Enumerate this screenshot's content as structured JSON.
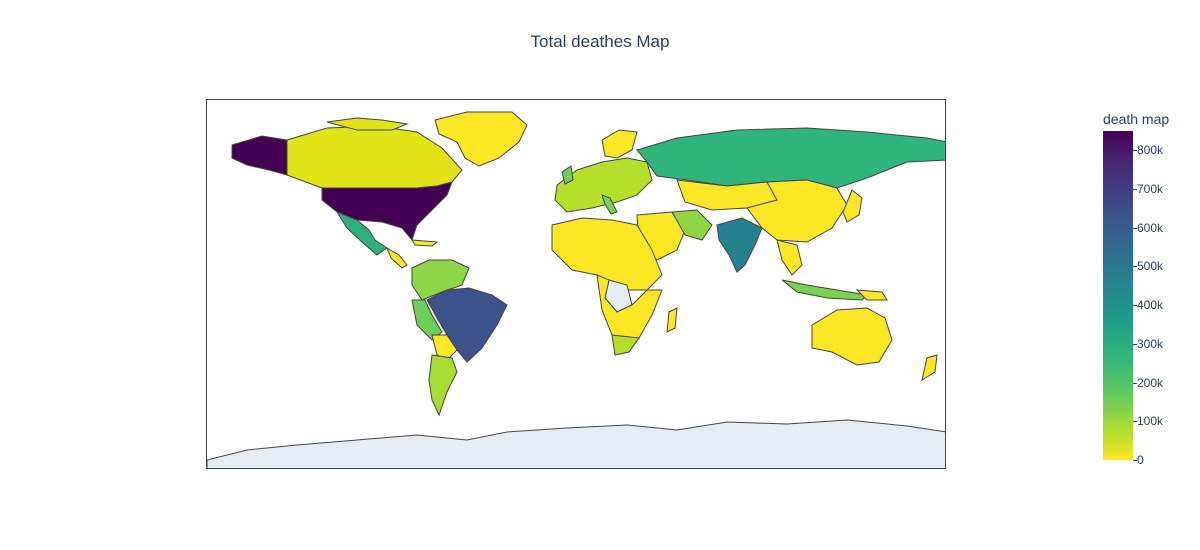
{
  "chart_data": {
    "type": "choropleth",
    "title": "Total deathes Map",
    "colorbar": {
      "title": "death map",
      "ticks": [
        "0",
        "100k",
        "200k",
        "300k",
        "400k",
        "500k",
        "600k",
        "700k",
        "800k"
      ],
      "range": [
        0,
        850000
      ]
    },
    "colors": {
      "missing": "#e5ecf6",
      "border": "#444444"
    },
    "regions": [
      {
        "name": "United States",
        "value": 850000
      },
      {
        "name": "Alaska",
        "value": 850000
      },
      {
        "name": "Brazil",
        "value": 620000
      },
      {
        "name": "India",
        "value": 480000
      },
      {
        "name": "Russia",
        "value": 320000
      },
      {
        "name": "Mexico",
        "value": 300000
      },
      {
        "name": "Peru",
        "value": 200000
      },
      {
        "name": "United Kingdom",
        "value": 150000
      },
      {
        "name": "Italy",
        "value": 140000
      },
      {
        "name": "Iran",
        "value": 130000
      },
      {
        "name": "Colombia",
        "value": 130000
      },
      {
        "name": "Argentina",
        "value": 120000
      },
      {
        "name": "Indonesia",
        "value": 145000
      },
      {
        "name": "South Africa",
        "value": 95000
      },
      {
        "name": "Canada",
        "value": 33000
      },
      {
        "name": "Greenland",
        "value": 0
      },
      {
        "name": "China",
        "value": 5000
      },
      {
        "name": "Australia",
        "value": 2000
      },
      {
        "name": "Antarctica",
        "value": null
      }
    ]
  }
}
